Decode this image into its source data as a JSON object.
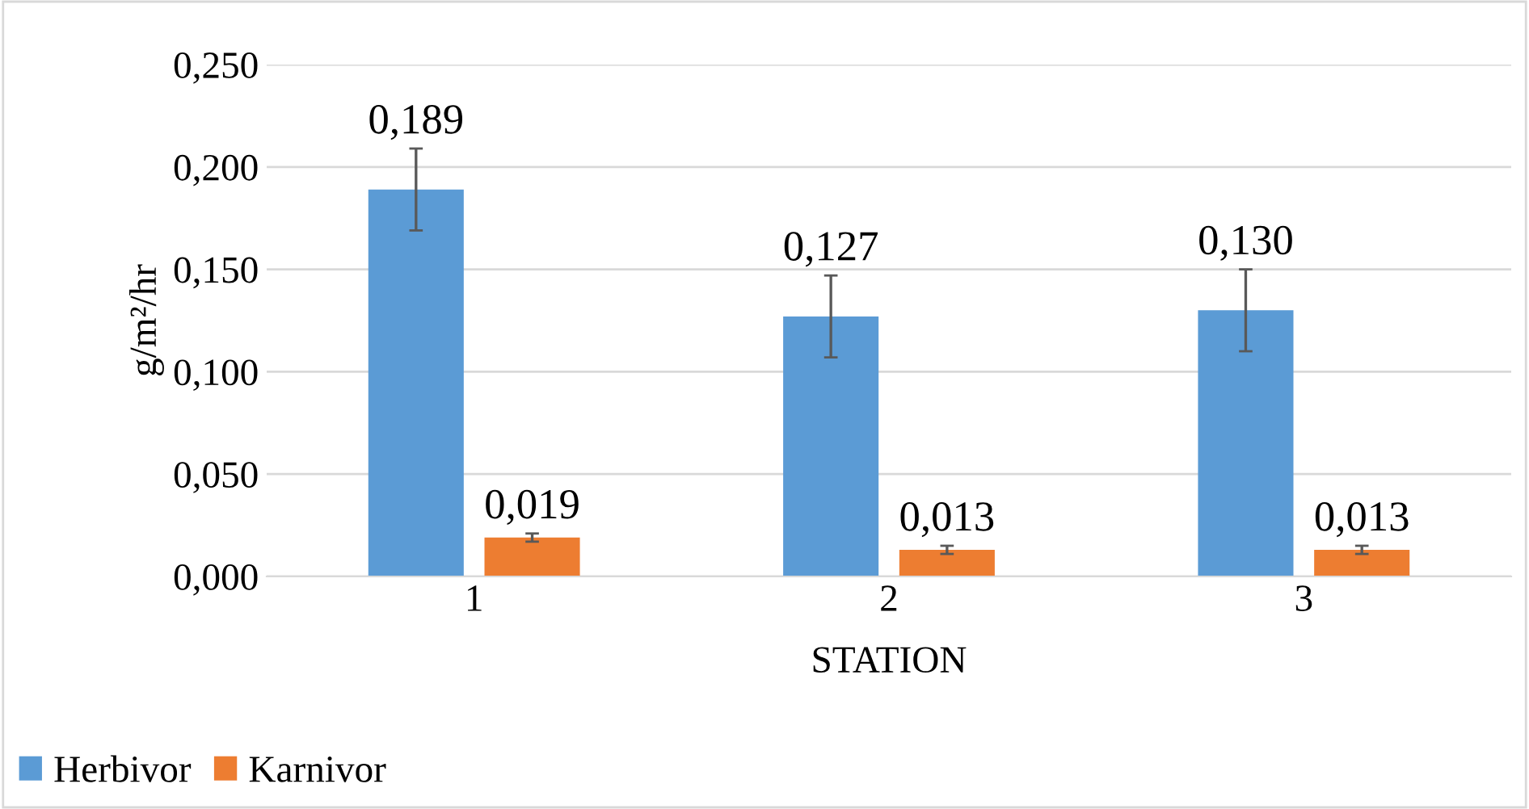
{
  "chart_data": {
    "type": "bar",
    "xlabel": "STATION",
    "ylabel": "g/m²/hr",
    "categories": [
      "1",
      "2",
      "3"
    ],
    "series": [
      {
        "name": "Herbivor",
        "color": "#5b9bd5",
        "values": [
          0.189,
          0.127,
          0.13
        ],
        "errors": [
          0.02,
          0.02,
          0.02
        ],
        "value_labels": [
          "0,189",
          "0,127",
          "0,130"
        ]
      },
      {
        "name": "Karnivor",
        "color": "#ed7d31",
        "values": [
          0.019,
          0.013,
          0.013
        ],
        "errors": [
          0.002,
          0.002,
          0.002
        ],
        "value_labels": [
          "0,019",
          "0,013",
          "0,013"
        ]
      }
    ],
    "ylim": [
      0,
      0.25
    ],
    "yticks": [
      {
        "value": 0,
        "label": "0,000"
      },
      {
        "value": 0.05,
        "label": "0,050"
      },
      {
        "value": 0.1,
        "label": "0,100"
      },
      {
        "value": 0.15,
        "label": "0,150"
      },
      {
        "value": 0.2,
        "label": "0,200"
      },
      {
        "value": 0.25,
        "label": "0,250"
      }
    ],
    "grid": "y",
    "legend": "bottom left"
  }
}
